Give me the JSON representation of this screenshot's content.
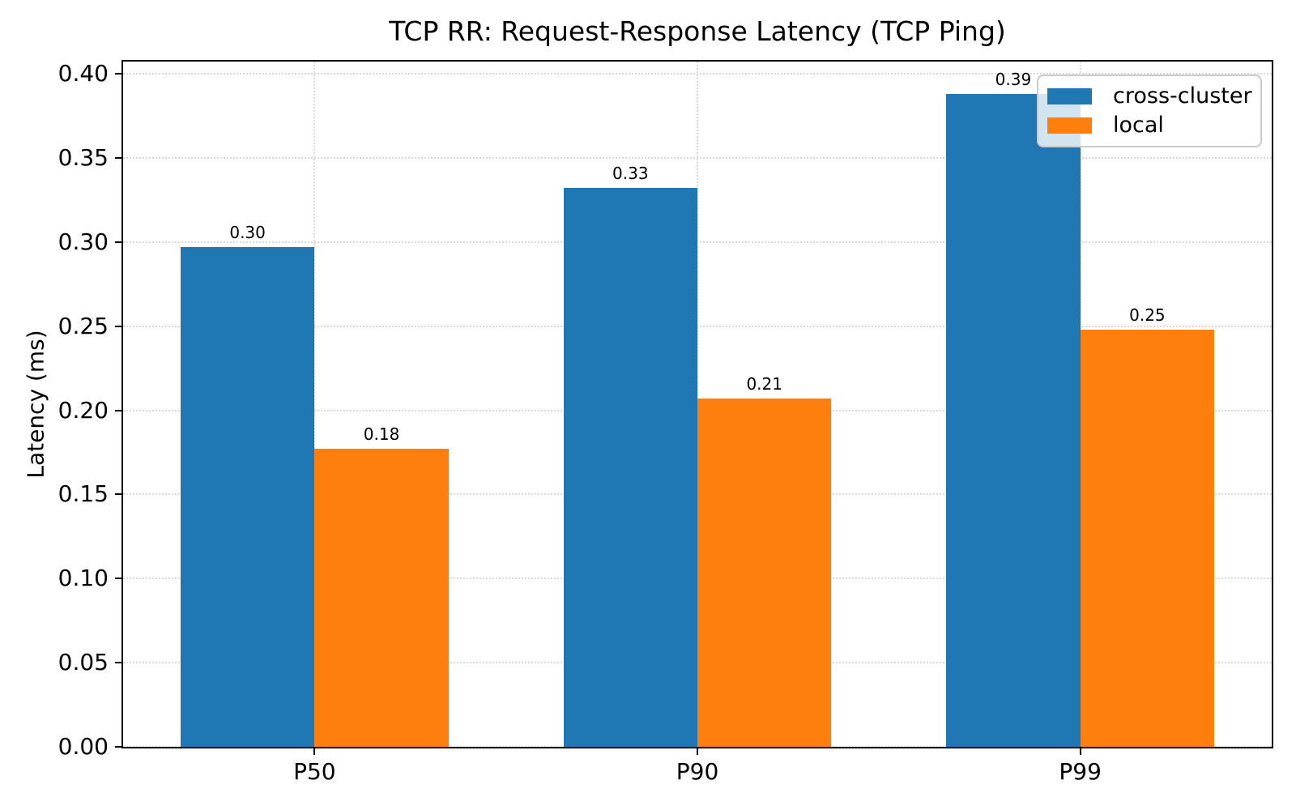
{
  "chart_data": {
    "type": "bar",
    "title": "TCP RR: Request-Response Latency (TCP Ping)",
    "ylabel": "Latency (ms)",
    "xlabel": "",
    "categories": [
      "P50",
      "P90",
      "P99"
    ],
    "series": [
      {
        "name": "cross-cluster",
        "color": "#1f77b4",
        "values": [
          0.297,
          0.332,
          0.388
        ],
        "labels": [
          "0.30",
          "0.33",
          "0.39"
        ]
      },
      {
        "name": "local",
        "color": "#ff7f0e",
        "values": [
          0.177,
          0.207,
          0.248
        ],
        "labels": [
          "0.18",
          "0.21",
          "0.25"
        ]
      }
    ],
    "ylim": [
      0,
      0.4073
    ],
    "yticks": [
      0.0,
      0.05,
      0.1,
      0.15,
      0.2,
      0.25,
      0.3,
      0.35,
      0.4
    ],
    "ytick_labels": [
      "0.00",
      "0.05",
      "0.10",
      "0.15",
      "0.20",
      "0.25",
      "0.30",
      "0.35",
      "0.40"
    ],
    "bar_width": 0.35,
    "grid": "dotted-both-axes",
    "grid_color": "#d9d9d9",
    "legend_position": "upper right"
  }
}
